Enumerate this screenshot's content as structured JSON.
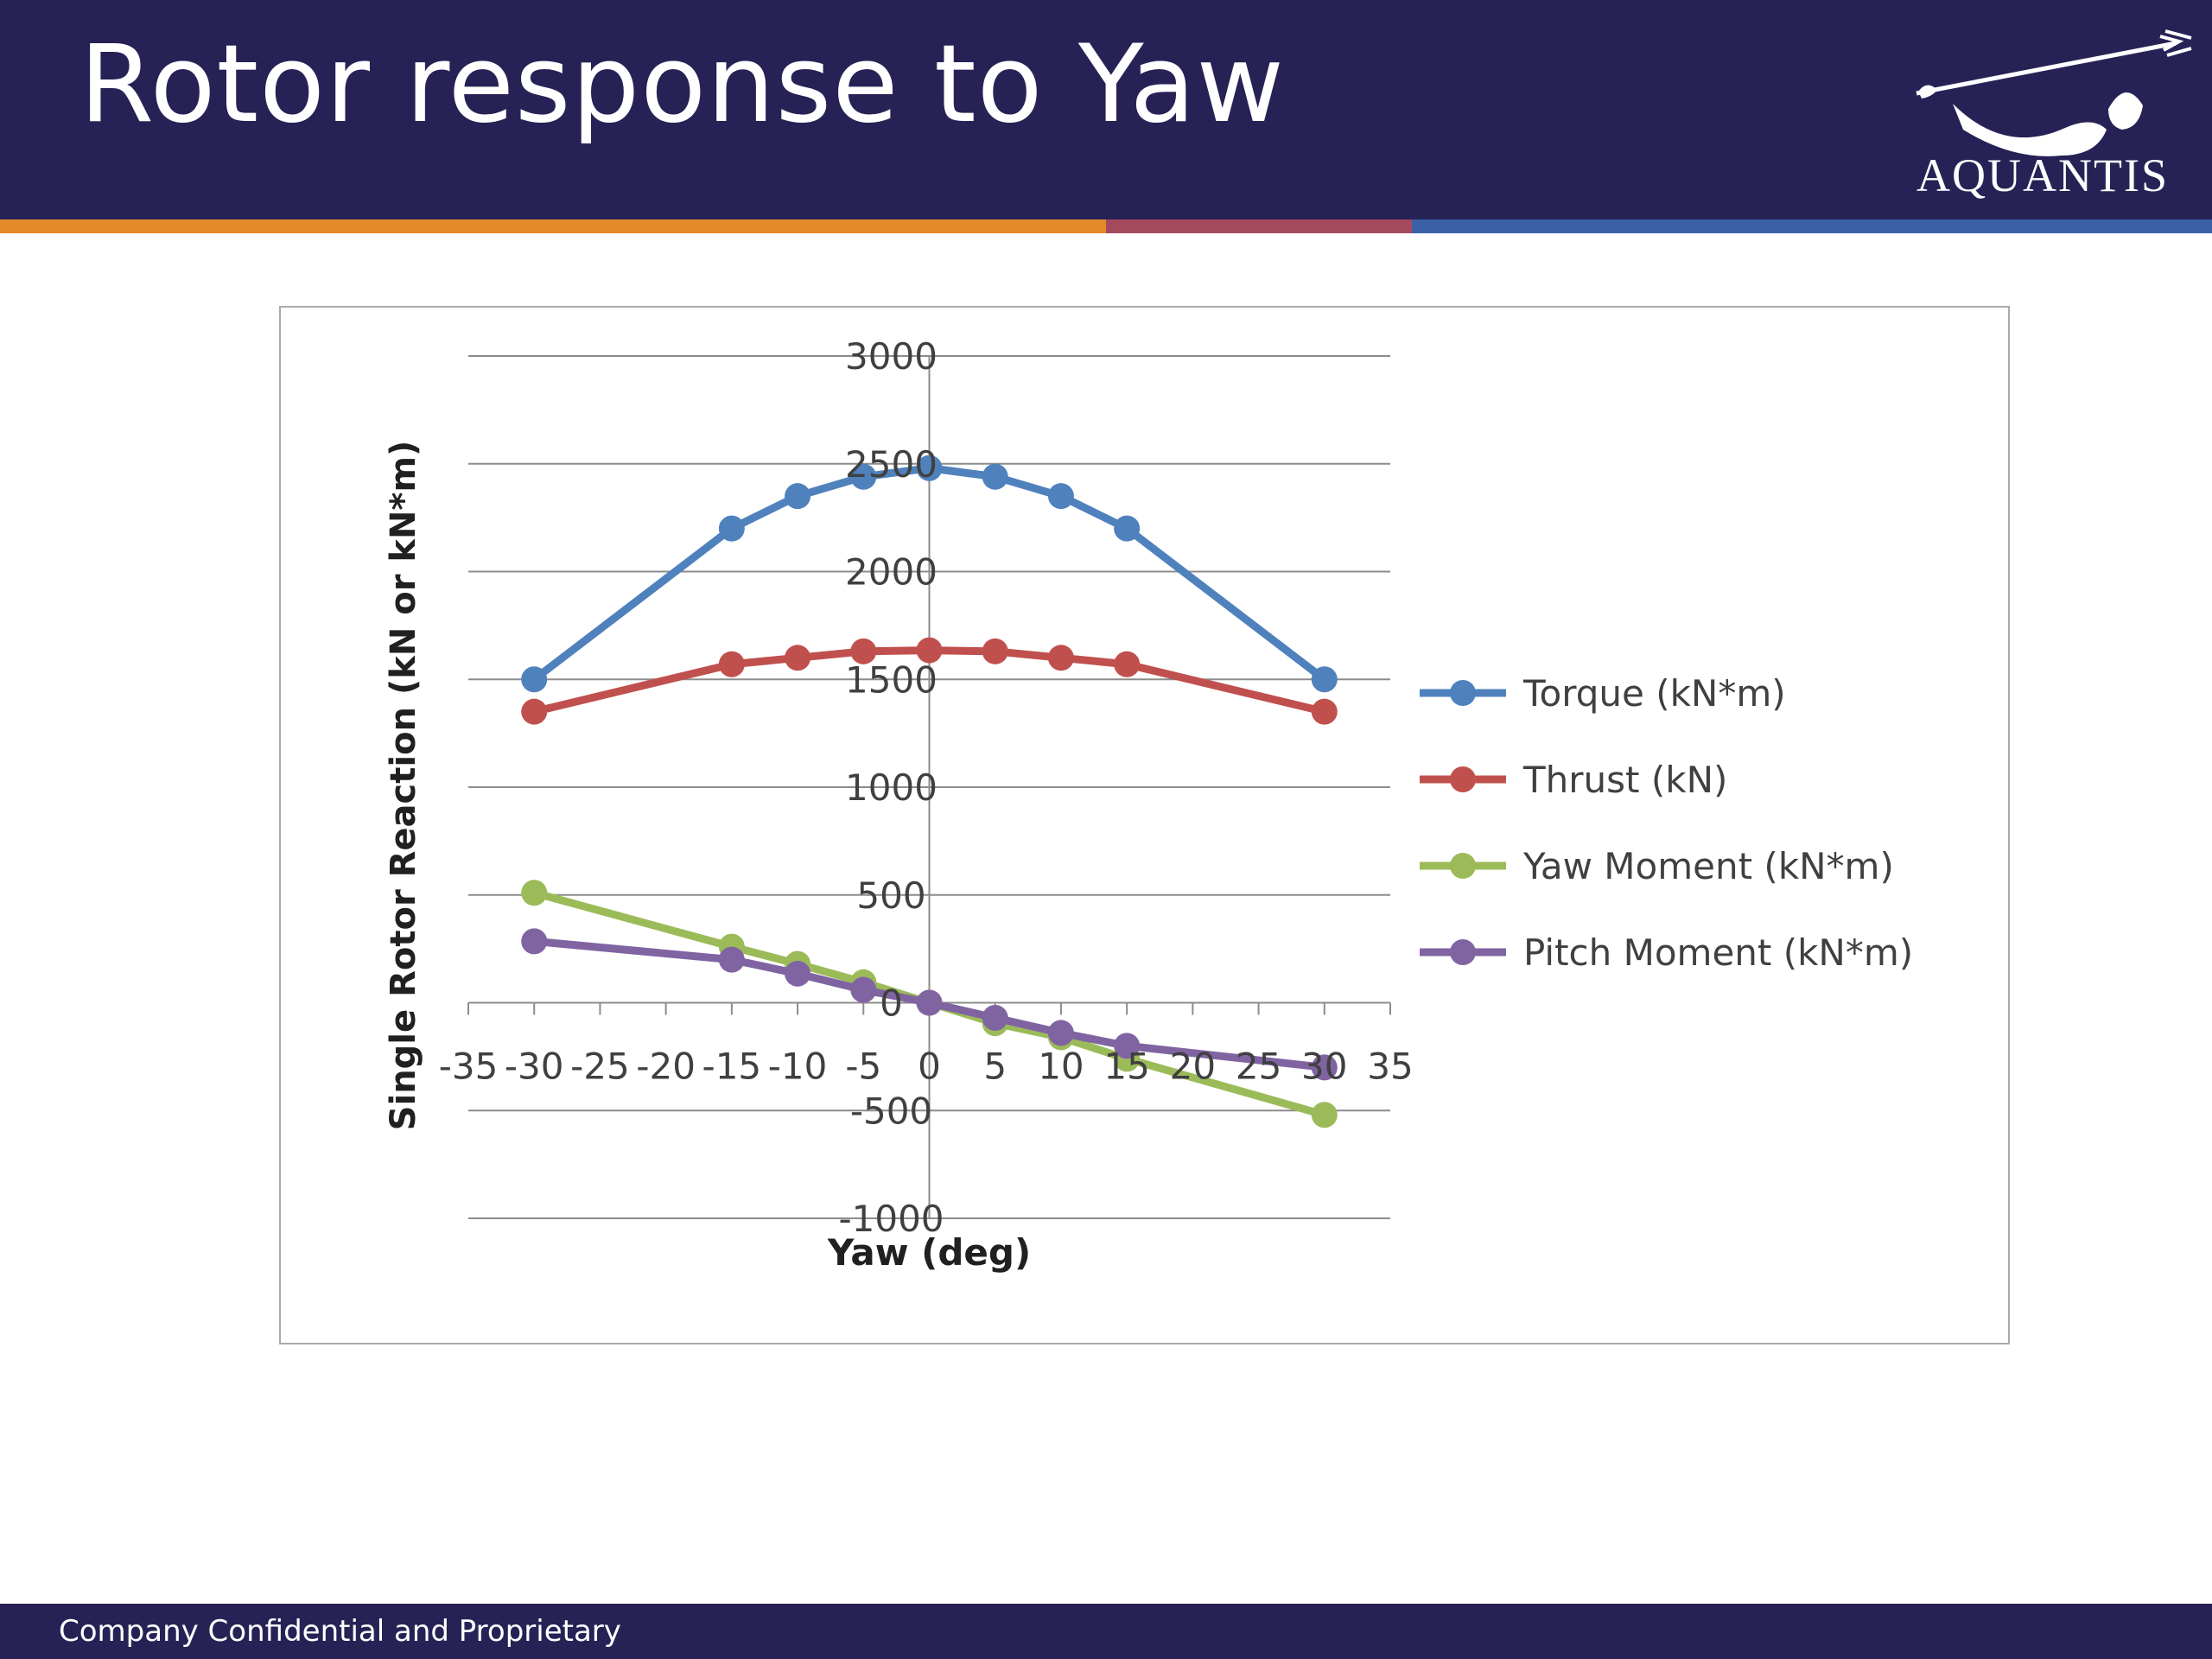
{
  "slide": {
    "title": "Rotor response to Yaw",
    "logo_text": "AQUANTIS",
    "footer": "Company Confidential and Proprietary",
    "colors": {
      "header": "#272255",
      "stripe_orange": "#e38a2b",
      "stripe_mauve": "#a54a5e",
      "stripe_blue": "#3a61a8"
    }
  },
  "chart_data": {
    "type": "line",
    "title": "",
    "xlabel": "Yaw (deg)",
    "ylabel": "Single Rotor Reaction (kN or kN*m)",
    "xlim": [
      -35,
      35
    ],
    "ylim": [
      -1000,
      3000
    ],
    "x_ticks": [
      "-35",
      "-30",
      "-25",
      "-20",
      "-15",
      "-10",
      "-5",
      "0",
      "5",
      "10",
      "15",
      "20",
      "25",
      "30",
      "35"
    ],
    "y_ticks": [
      "-1000",
      "-500",
      "0",
      "500",
      "1000",
      "1500",
      "2000",
      "2500",
      "3000"
    ],
    "grid": "horizontal",
    "legend": "right",
    "x": [
      -30,
      -15,
      -10,
      -5,
      0,
      5,
      10,
      15,
      30
    ],
    "series": [
      {
        "name": "Torque (kN*m)",
        "color": "#4f81bd",
        "values": [
          1500,
          2200,
          2350,
          2440,
          2480,
          2440,
          2350,
          2200,
          1500
        ]
      },
      {
        "name": "Thrust (kN)",
        "color": "#c0504d",
        "values": [
          1350,
          1570,
          1600,
          1630,
          1635,
          1630,
          1600,
          1570,
          1350
        ]
      },
      {
        "name": "Yaw Moment (kN*m)",
        "color": "#9bbb59",
        "values": [
          510,
          260,
          180,
          95,
          0,
          -95,
          -160,
          -260,
          -520
        ]
      },
      {
        "name": "Pitch Moment (kN*m)",
        "color": "#8064a2",
        "values": [
          285,
          200,
          135,
          60,
          0,
          -70,
          -140,
          -200,
          -300
        ]
      }
    ]
  }
}
